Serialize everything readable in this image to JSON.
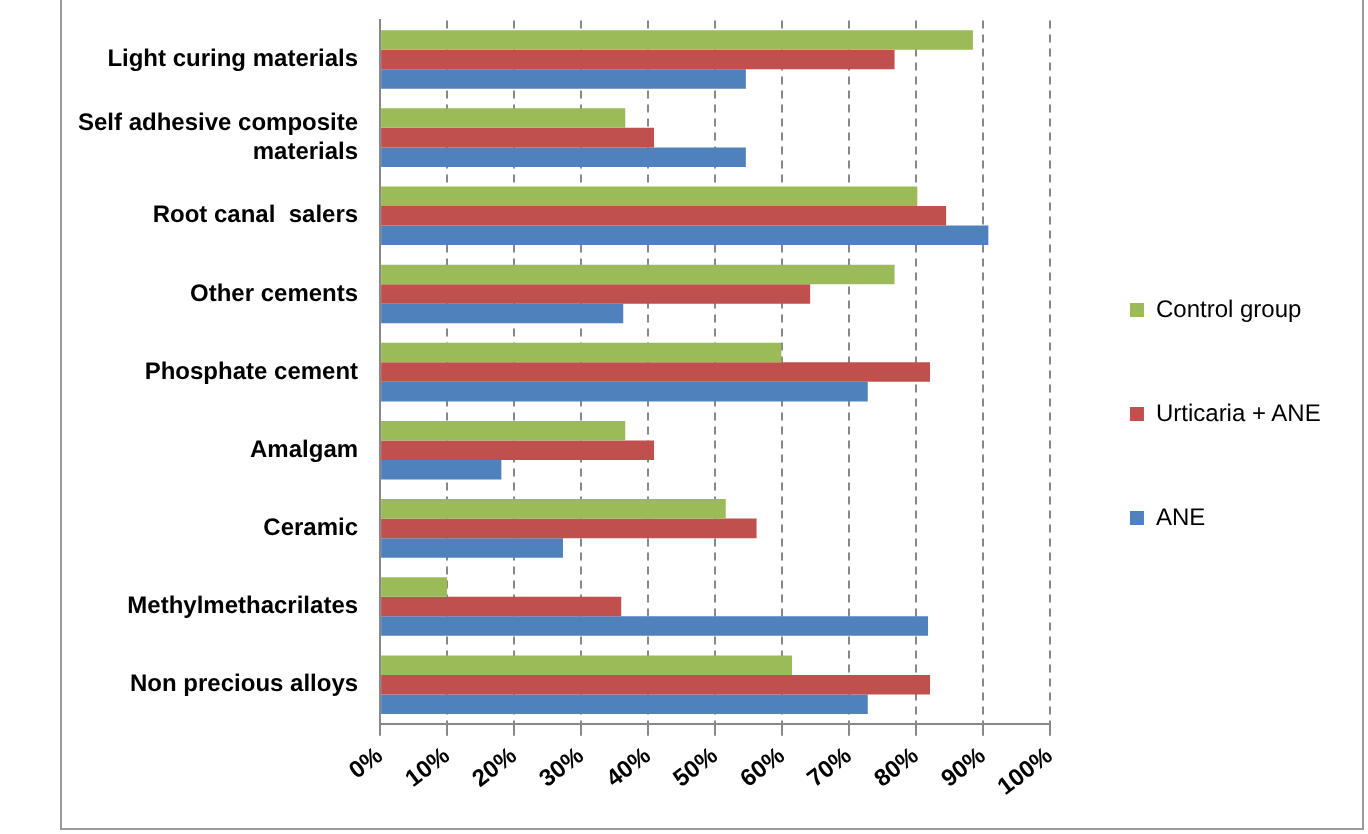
{
  "chart_data": {
    "type": "bar",
    "orientation": "horizontal",
    "categories": [
      "Light curing materials",
      "Self adhesive composite materials",
      "Root canal  salers",
      "Other cements",
      "Phosphate cement",
      "Amalgam",
      "Ceramic",
      "Methylmethacrilates",
      "Non precious alloys"
    ],
    "series": [
      {
        "name": "Control group",
        "color": "#9bbb59",
        "values": [
          88.5,
          36.6,
          80.2,
          76.8,
          59.9,
          36.6,
          51.6,
          10,
          61.5
        ]
      },
      {
        "name": "Urticaria + ANE",
        "color": "#c0504d",
        "values": [
          76.8,
          40.9,
          84.5,
          64.2,
          82.1,
          40.9,
          56.2,
          36,
          82.1
        ]
      },
      {
        "name": "ANE",
        "color": "#4f81bd",
        "values": [
          54.6,
          54.6,
          90.8,
          36.3,
          72.8,
          18.1,
          27.3,
          81.8,
          72.8
        ]
      }
    ],
    "xlim": [
      0,
      100
    ],
    "xticks": [
      {
        "value": 0,
        "label": "0%"
      },
      {
        "value": 10,
        "label": "10%"
      },
      {
        "value": 20,
        "label": "20%"
      },
      {
        "value": 30,
        "label": "30%"
      },
      {
        "value": 40,
        "label": "40%"
      },
      {
        "value": 50,
        "label": "50%"
      },
      {
        "value": 60,
        "label": "60%"
      },
      {
        "value": 70,
        "label": "70%"
      },
      {
        "value": 80,
        "label": "80%"
      },
      {
        "value": 90,
        "label": "90%"
      },
      {
        "value": 100,
        "label": "100%"
      }
    ],
    "grid": "x",
    "legend": "right"
  }
}
